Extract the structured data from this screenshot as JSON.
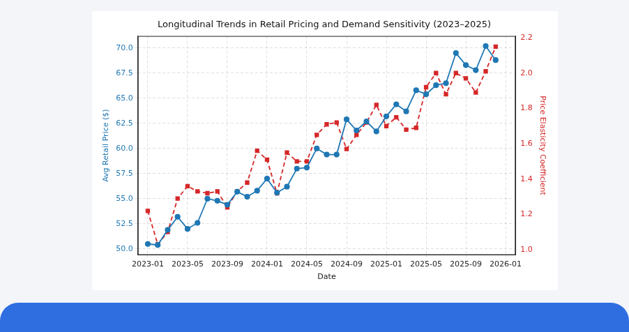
{
  "chart_data": {
    "type": "line",
    "title": "Longitudinal Trends in Retail Pricing and Demand Sensitivity (2023–2025)",
    "x_label": "Date",
    "y_label": "Avg Retail Price ($)",
    "y2_label": "Price Elasticity Coefficient",
    "x": [
      "2023-01",
      "2023-02",
      "2023-03",
      "2023-04",
      "2023-05",
      "2023-06",
      "2023-07",
      "2023-08",
      "2023-09",
      "2023-10",
      "2023-11",
      "2023-12",
      "2024-01",
      "2024-02",
      "2024-03",
      "2024-04",
      "2024-05",
      "2024-06",
      "2024-07",
      "2024-08",
      "2024-09",
      "2024-10",
      "2024-11",
      "2024-12",
      "2025-01",
      "2025-02",
      "2025-03",
      "2025-04",
      "2025-05",
      "2025-06",
      "2025-07",
      "2025-08",
      "2025-09",
      "2025-10",
      "2025-11",
      "2025-12"
    ],
    "xlim": [
      "2022-12",
      "2026-02"
    ],
    "xticks": [
      "2023-01",
      "2023-05",
      "2023-09",
      "2024-01",
      "2024-05",
      "2024-09",
      "2025-01",
      "2025-05",
      "2025-09",
      "2026-01"
    ],
    "ylim": [
      49.4,
      71.2
    ],
    "yticks": [
      {
        "value": 50,
        "label": "50.0"
      },
      52.5,
      {
        "value": 55,
        "label": "55.0"
      },
      57.5,
      {
        "value": 60,
        "label": "60.0"
      },
      62.5,
      {
        "value": 65,
        "label": "65.0"
      },
      67.5,
      {
        "value": 70,
        "label": "70.0"
      }
    ],
    "y2lim": [
      0.97,
      2.21
    ],
    "y2ticks": [
      {
        "value": 1,
        "label": "1.0"
      },
      1.2,
      1.4,
      1.6,
      1.8,
      {
        "value": 2,
        "label": "2.0"
      },
      2.2
    ],
    "grid": true,
    "series": [
      {
        "name": "Avg Retail Price ($)",
        "color": "#1f77b4",
        "marker": "circle",
        "line_style": "solid",
        "values": [
          50.5,
          50.4,
          51.9,
          53.2,
          52.0,
          52.6,
          55.0,
          54.8,
          54.4,
          55.7,
          55.2,
          55.8,
          57.0,
          55.6,
          56.2,
          58.0,
          58.1,
          60.0,
          59.4,
          59.4,
          62.9,
          61.8,
          62.7,
          61.7,
          63.2,
          64.4,
          63.7,
          65.8,
          65.4,
          66.3,
          66.5,
          69.5,
          68.3,
          67.8,
          70.2,
          68.8
        ]
      },
      {
        "name": "Price Elasticity Coefficient",
        "color": "#d62728",
        "marker": "square",
        "line_style": "dashed",
        "axis": "y2",
        "values": [
          1.22,
          1.03,
          1.1,
          1.29,
          1.36,
          1.33,
          1.32,
          1.33,
          1.24,
          1.33,
          1.38,
          1.56,
          1.51,
          1.32,
          1.55,
          1.5,
          1.5,
          1.65,
          1.71,
          1.72,
          1.57,
          1.65,
          1.72,
          1.82,
          1.7,
          1.75,
          1.68,
          1.69,
          1.92,
          2.0,
          1.88,
          2.0,
          1.97,
          1.89,
          2.01,
          2.15
        ]
      }
    ]
  }
}
